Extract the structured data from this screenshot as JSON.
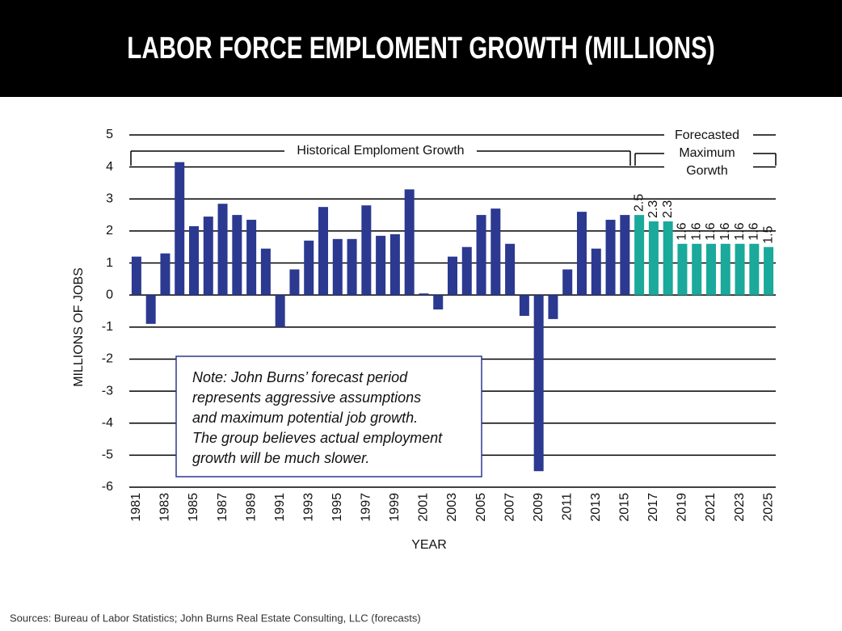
{
  "chart_data": {
    "type": "bar",
    "title": "LABOR FORCE EMPLOMENT GROWTH (MILLIONS)",
    "y_label": "MILLIONS OF JOBS",
    "x_label": "YEAR",
    "categories": [
      "1981",
      null,
      "1983",
      null,
      "1985",
      null,
      "1987",
      null,
      "1989",
      null,
      "1991",
      null,
      "1993",
      null,
      "1995",
      null,
      "1997",
      null,
      "1999",
      null,
      "2001",
      null,
      "2003",
      null,
      "2005",
      null,
      "2007",
      null,
      "2009",
      null,
      "2011",
      null,
      "2013",
      null,
      "2015",
      null,
      "2017",
      null,
      "2019",
      null,
      "2021",
      null,
      "2023",
      null,
      "2025"
    ],
    "values": [
      1.2,
      -0.9,
      1.3,
      4.15,
      2.15,
      2.45,
      2.85,
      2.5,
      2.35,
      1.45,
      -1.0,
      0.8,
      1.7,
      2.75,
      1.75,
      1.75,
      2.8,
      1.85,
      1.9,
      3.3,
      0.05,
      -0.45,
      1.2,
      1.5,
      2.5,
      2.7,
      1.6,
      -0.65,
      -5.5,
      -0.75,
      0.8,
      2.6,
      1.45,
      2.35,
      2.5,
      2.5,
      2.3,
      2.3,
      1.6,
      1.6,
      1.6,
      1.6,
      1.6,
      1.6,
      1.5
    ],
    "value_labels": [
      null,
      null,
      null,
      null,
      null,
      null,
      null,
      null,
      null,
      null,
      null,
      null,
      null,
      null,
      null,
      null,
      null,
      null,
      null,
      null,
      null,
      null,
      null,
      null,
      null,
      null,
      null,
      null,
      null,
      null,
      null,
      null,
      null,
      null,
      null,
      "2.5",
      "2.3",
      "2.3",
      "1.6",
      "1.6",
      "1.6",
      "1.6",
      "1.6",
      "1.6",
      "1.5"
    ],
    "colors": [
      "#2b3990",
      "#2b3990",
      "#2b3990",
      "#2b3990",
      "#2b3990",
      "#2b3990",
      "#2b3990",
      "#2b3990",
      "#2b3990",
      "#2b3990",
      "#2b3990",
      "#2b3990",
      "#2b3990",
      "#2b3990",
      "#2b3990",
      "#2b3990",
      "#2b3990",
      "#2b3990",
      "#2b3990",
      "#2b3990",
      "#2b3990",
      "#2b3990",
      "#2b3990",
      "#2b3990",
      "#2b3990",
      "#2b3990",
      "#2b3990",
      "#2b3990",
      "#2b3990",
      "#2b3990",
      "#2b3990",
      "#2b3990",
      "#2b3990",
      "#2b3990",
      "#2b3990",
      "#1aa99b",
      "#1aa99b",
      "#1aa99b",
      "#1aa99b",
      "#1aa99b",
      "#1aa99b",
      "#1aa99b",
      "#1aa99b",
      "#1aa99b",
      "#1aa99b"
    ],
    "ylim": [
      -6,
      5
    ],
    "yticks": [
      -6,
      -5,
      -4,
      -3,
      -2,
      -1,
      0,
      1,
      2,
      3,
      4,
      5
    ],
    "grid": true,
    "annotations": {
      "historical": "Historical Emploment Growth",
      "forecast": [
        "Forecasted",
        "Maximum",
        "Gorwth"
      ]
    },
    "note": [
      "Note: John Burns’ forecast period",
      "represents aggressive assumptions",
      "and maximum potential job growth.",
      "The group believes actual employment",
      "growth will be much slower."
    ],
    "source": "Sources: Bureau of Labor Statistics; John Burns Real Estate Consulting, LLC (forecasts)"
  }
}
